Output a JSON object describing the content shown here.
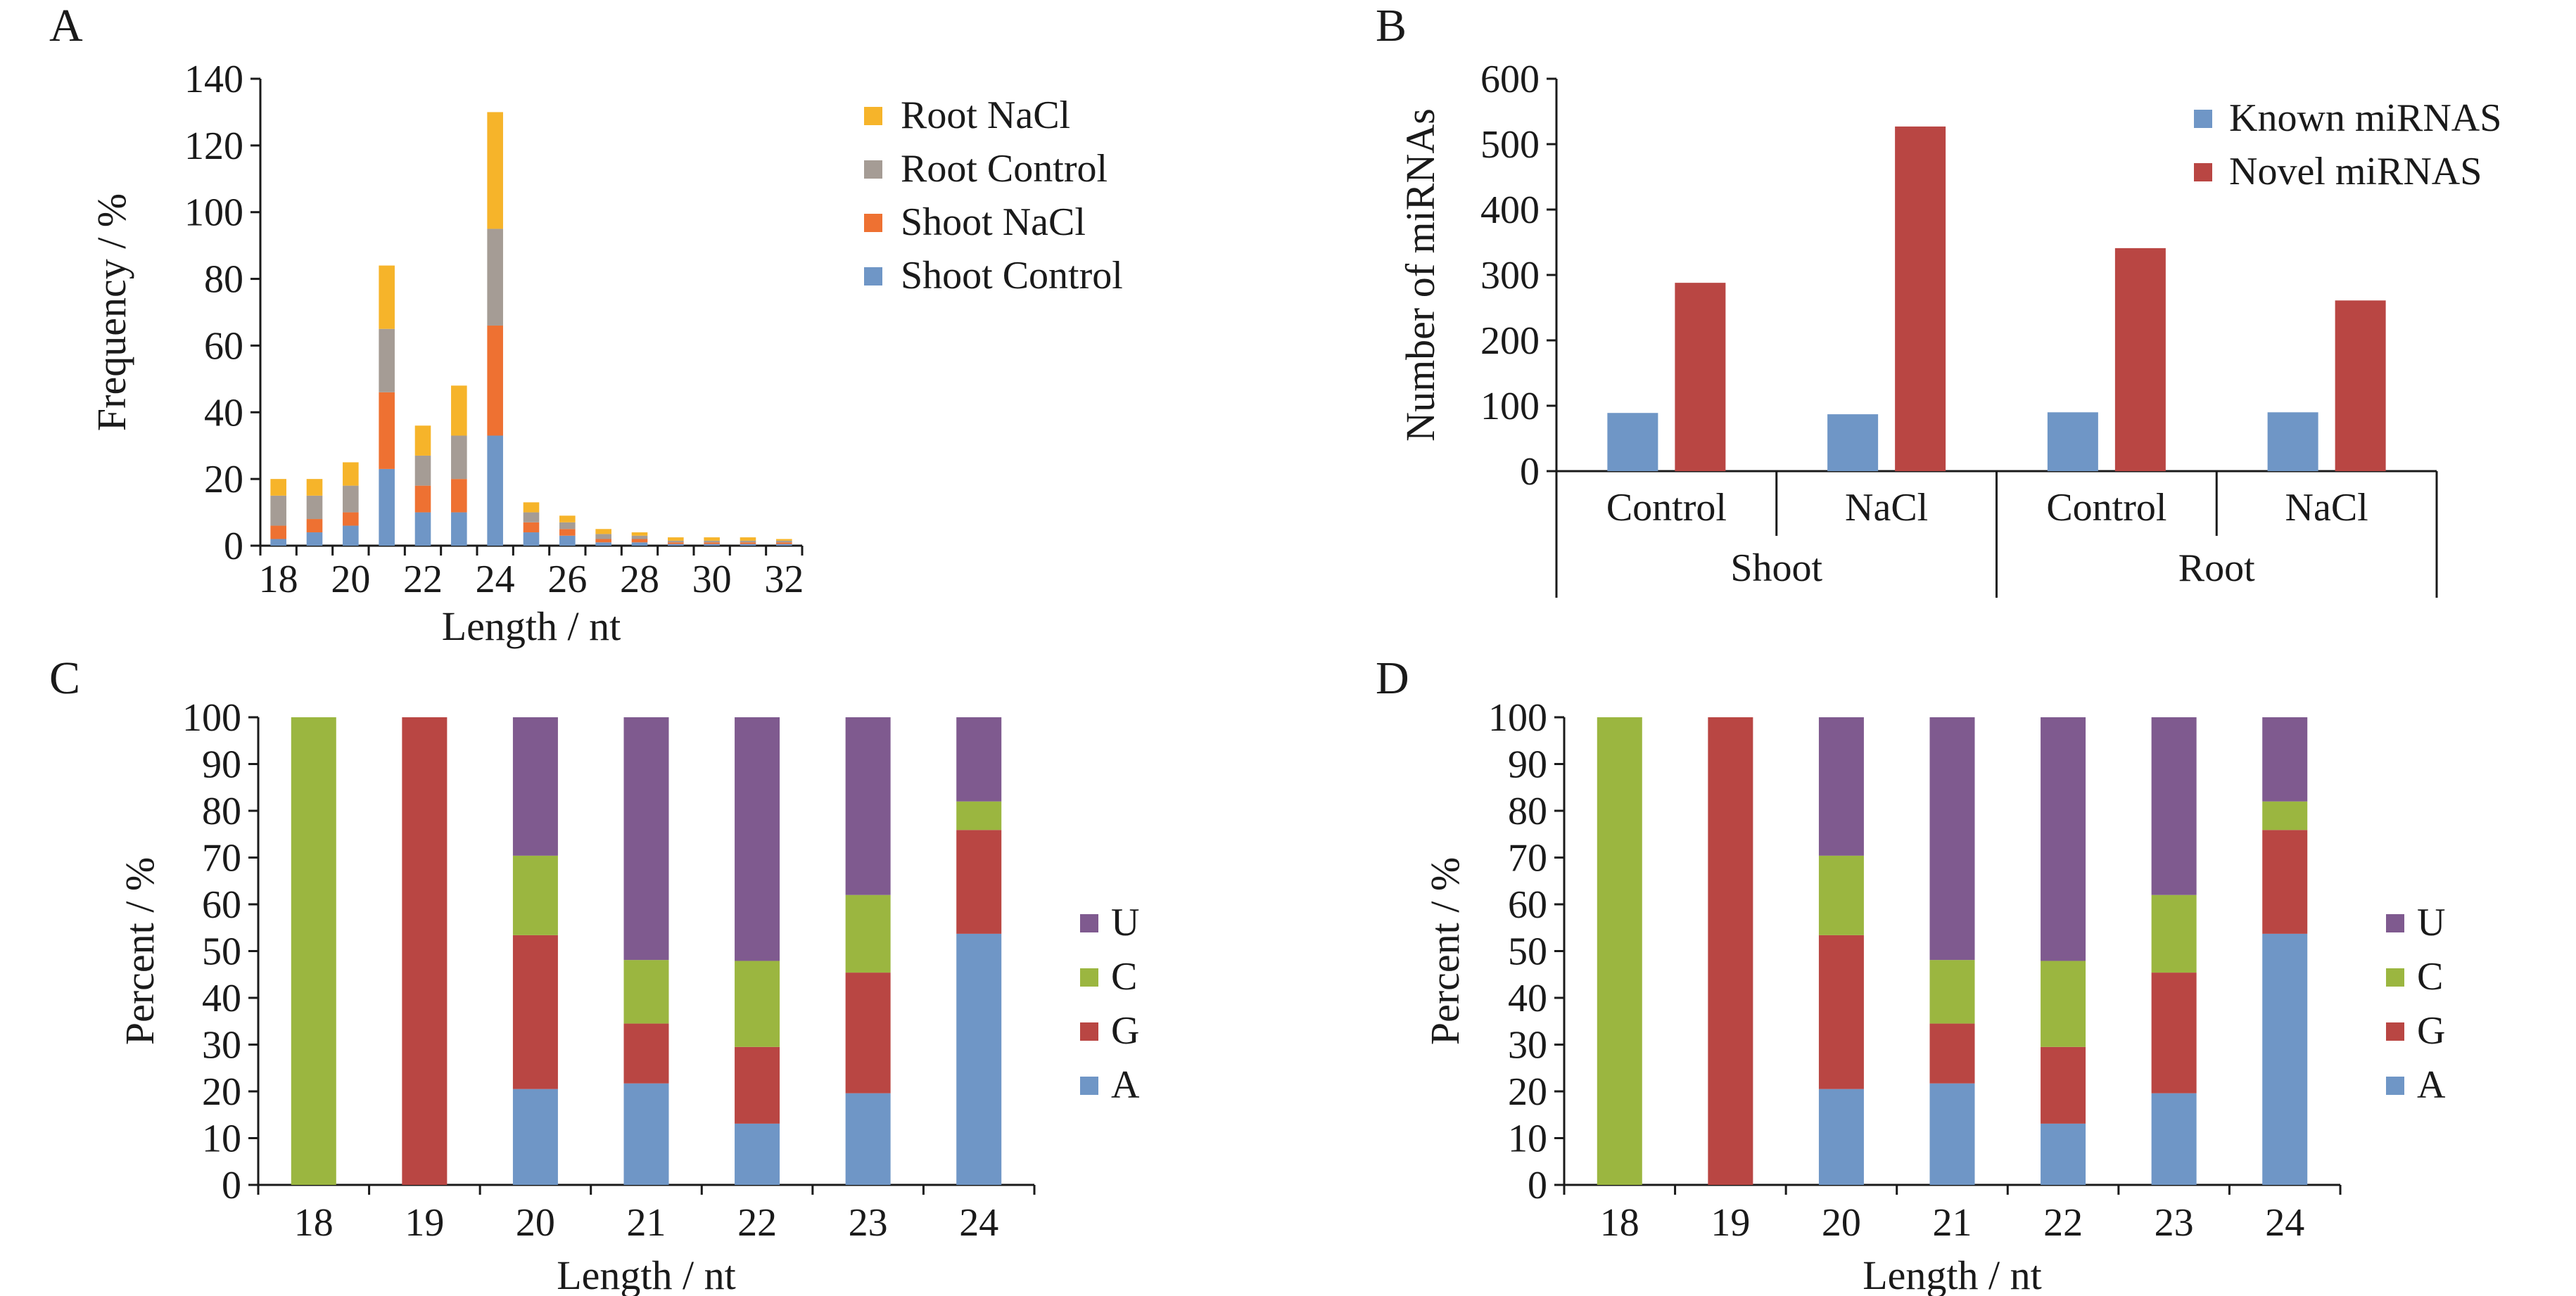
{
  "colors": {
    "root_nacl": "#f6b42a",
    "root_control": "#a59c95",
    "shoot_nacl": "#ee7132",
    "shoot_control": "#6f96c6",
    "known": "#6f96c6",
    "novel": "#b94643",
    "U": "#7f5a8f",
    "C": "#9bb640",
    "G": "#b94643",
    "A": "#6f96c6"
  },
  "chart_data": [
    {
      "panel": "A",
      "type": "bar",
      "stacked": true,
      "xlabel": "Length / nt",
      "ylabel": "Frequency / %",
      "ylim": [
        0,
        140
      ],
      "yticks": [
        "0",
        "20",
        "40",
        "60",
        "80",
        "100",
        "120",
        "140"
      ],
      "categories": [
        18,
        19,
        20,
        21,
        22,
        23,
        24,
        25,
        26,
        27,
        28,
        29,
        30,
        31,
        32
      ],
      "xtick_labels": [
        "18",
        "20",
        "22",
        "24",
        "26",
        "28",
        "30",
        "32"
      ],
      "legend_position": "right",
      "series": [
        {
          "name": "Shoot Control",
          "color_key": "shoot_control",
          "values": [
            2,
            4,
            6,
            23,
            10,
            10,
            33,
            4,
            3,
            1,
            1,
            0.5,
            0.5,
            0.5,
            0.5
          ]
        },
        {
          "name": "Shoot NaCl",
          "color_key": "shoot_nacl",
          "values": [
            4,
            4,
            4,
            23,
            8,
            10,
            33,
            3,
            2,
            1,
            1,
            0.5,
            0.5,
            0.5,
            0.5
          ]
        },
        {
          "name": "Root Control",
          "color_key": "root_control",
          "values": [
            9,
            7,
            8,
            19,
            9,
            13,
            29,
            3,
            2,
            1.5,
            1,
            0.5,
            0.5,
            0.5,
            0.5
          ]
        },
        {
          "name": "Root NaCl",
          "color_key": "root_nacl",
          "values": [
            5,
            5,
            7,
            19,
            9,
            15,
            35,
            3,
            2,
            1.5,
            1,
            1,
            1,
            1,
            0.5
          ]
        }
      ]
    },
    {
      "panel": "B",
      "type": "bar",
      "ylabel": "Number of miRNAs",
      "ylim": [
        0,
        600
      ],
      "yticks": [
        "0",
        "100",
        "200",
        "300",
        "400",
        "500",
        "600"
      ],
      "categories": [
        "Control",
        "NaCl",
        "Control",
        "NaCl"
      ],
      "groups": [
        "Shoot",
        "Root"
      ],
      "legend_position": "top-right",
      "series": [
        {
          "name": "Known miRNAS",
          "color_key": "known",
          "values": [
            89,
            87,
            90,
            90
          ]
        },
        {
          "name": "Novel miRNAS",
          "color_key": "novel",
          "values": [
            288,
            527,
            341,
            261
          ]
        }
      ]
    },
    {
      "panel": "C",
      "type": "bar",
      "stacked": true,
      "xlabel": "Length / nt",
      "ylabel": "Percent / %",
      "ylim": [
        0,
        100
      ],
      "yticks": [
        "0",
        "10",
        "20",
        "30",
        "40",
        "50",
        "60",
        "70",
        "80",
        "90",
        "100"
      ],
      "categories": [
        "18",
        "19",
        "20",
        "21",
        "22",
        "23",
        "24"
      ],
      "legend_position": "right",
      "series": [
        {
          "name": "A",
          "color_key": "A",
          "values": [
            0,
            0,
            20.5,
            21.7,
            13.1,
            19.6,
            53.7
          ]
        },
        {
          "name": "G",
          "color_key": "G",
          "values": [
            0,
            100,
            32.9,
            12.8,
            16.4,
            25.8,
            22.2
          ]
        },
        {
          "name": "C",
          "color_key": "C",
          "values": [
            100,
            0,
            17.0,
            13.6,
            18.4,
            16.6,
            6.1
          ]
        },
        {
          "name": "U",
          "color_key": "U",
          "values": [
            0,
            0,
            29.6,
            51.9,
            52.1,
            38.0,
            18.0
          ]
        }
      ],
      "legend_order": [
        "U",
        "C",
        "G",
        "A"
      ]
    },
    {
      "panel": "D",
      "type": "bar",
      "stacked": true,
      "xlabel": "Length / nt",
      "ylabel": "Percent / %",
      "ylim": [
        0,
        100
      ],
      "yticks": [
        "0",
        "10",
        "20",
        "30",
        "40",
        "50",
        "60",
        "70",
        "80",
        "90",
        "100"
      ],
      "categories": [
        "18",
        "19",
        "20",
        "21",
        "22",
        "23",
        "24"
      ],
      "legend_position": "right",
      "series": [
        {
          "name": "A",
          "color_key": "A",
          "values": [
            0,
            0,
            20.5,
            21.7,
            13.1,
            19.6,
            53.7
          ]
        },
        {
          "name": "G",
          "color_key": "G",
          "values": [
            0,
            100,
            32.9,
            12.8,
            16.4,
            25.8,
            22.2
          ]
        },
        {
          "name": "C",
          "color_key": "C",
          "values": [
            100,
            0,
            17.0,
            13.6,
            18.4,
            16.6,
            6.1
          ]
        },
        {
          "name": "U",
          "color_key": "U",
          "values": [
            0,
            0,
            29.6,
            51.9,
            52.1,
            38.0,
            18.0
          ]
        }
      ],
      "legend_order": [
        "U",
        "C",
        "G",
        "A"
      ]
    }
  ]
}
